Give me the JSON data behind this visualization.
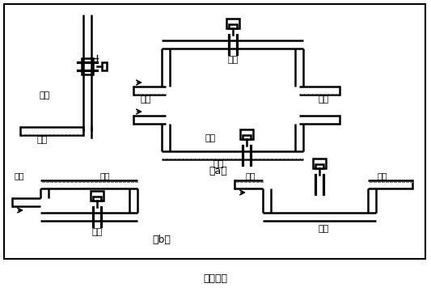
{
  "title": "图（四）",
  "labels": {
    "zhengque": "正确",
    "cuowu": "错误",
    "yeti": "液体",
    "qipao": "气泡",
    "a_label": "（a）",
    "b_label": "（b）"
  },
  "figsize": [
    5.33,
    3.61
  ],
  "dpi": 100
}
